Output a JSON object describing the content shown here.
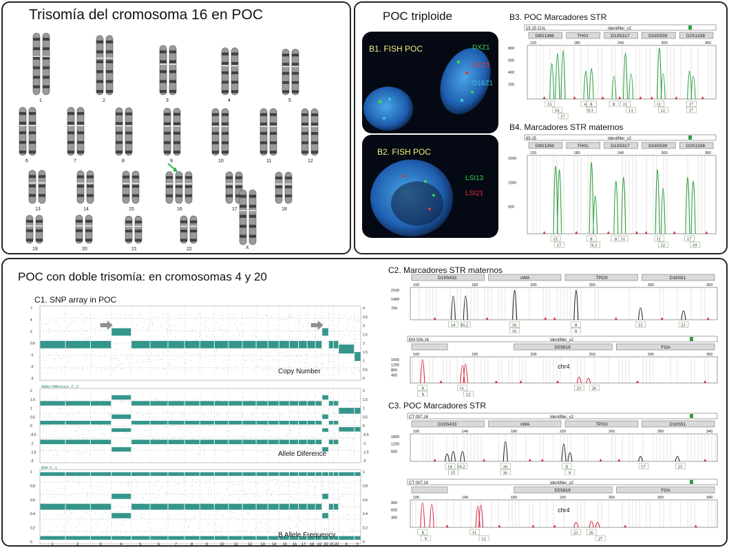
{
  "panel_a": {
    "title": "Trisomía del cromosoma 16 en POC",
    "chromosomes": [
      {
        "label": "1",
        "row": 0,
        "col": 0,
        "count": 2,
        "len": 1.0
      },
      {
        "label": "2",
        "row": 0,
        "col": 1,
        "count": 2,
        "len": 0.96
      },
      {
        "label": "3",
        "row": 0,
        "col": 2,
        "count": 2,
        "len": 0.8
      },
      {
        "label": "4",
        "row": 0,
        "col": 3,
        "count": 2,
        "len": 0.76
      },
      {
        "label": "5",
        "row": 0,
        "col": 4,
        "count": 2,
        "len": 0.74
      },
      {
        "label": "6",
        "row": 1,
        "col": 0,
        "count": 2,
        "len": 0.7
      },
      {
        "label": "7",
        "row": 1,
        "col": 1,
        "count": 2,
        "len": 0.66
      },
      {
        "label": "8",
        "row": 1,
        "col": 2,
        "count": 2,
        "len": 0.6
      },
      {
        "label": "9",
        "row": 1,
        "col": 3,
        "count": 2,
        "len": 0.58
      },
      {
        "label": "10",
        "row": 1,
        "col": 4,
        "count": 2,
        "len": 0.56
      },
      {
        "label": "11",
        "row": 1,
        "col": 5,
        "count": 2,
        "len": 0.56
      },
      {
        "label": "12",
        "row": 1,
        "col": 6,
        "count": 2,
        "len": 0.55
      },
      {
        "label": "13",
        "row": 2,
        "col": 0,
        "count": 2,
        "len": 0.45
      },
      {
        "label": "14",
        "row": 2,
        "col": 1,
        "count": 2,
        "len": 0.42
      },
      {
        "label": "15",
        "row": 2,
        "col": 2,
        "count": 2,
        "len": 0.4
      },
      {
        "label": "16",
        "row": 2,
        "col": 3,
        "count": 3,
        "len": 0.36
      },
      {
        "label": "17",
        "row": 2,
        "col": 4,
        "count": 2,
        "len": 0.34
      },
      {
        "label": "18",
        "row": 2,
        "col": 5,
        "count": 2,
        "len": 0.32
      },
      {
        "label": "19",
        "row": 3,
        "col": 0,
        "count": 2,
        "len": 0.26
      },
      {
        "label": "20",
        "row": 3,
        "col": 1,
        "count": 2,
        "len": 0.27
      },
      {
        "label": "21",
        "row": 3,
        "col": 2,
        "count": 2,
        "len": 0.2
      },
      {
        "label": "22",
        "row": 3,
        "col": 3,
        "count": 2,
        "len": 0.21
      },
      {
        "label": "X",
        "row": 3,
        "col": 4,
        "count": 2,
        "len": 0.62
      }
    ],
    "arrow_color": "#2db34a"
  },
  "panel_b": {
    "title": "POC triploide",
    "fish1": {
      "label": "B1. FISH POC",
      "probes": [
        {
          "name": "DXZ1",
          "color": "#39d353"
        },
        {
          "name": "DYZ3",
          "color": "#e0333a"
        },
        {
          "name": "D18Z1",
          "color": "#36c8d6"
        }
      ]
    },
    "fish2": {
      "label": "B2. FISH POC",
      "probes": [
        {
          "name": "LSI13",
          "color": "#39d353"
        },
        {
          "name": "LSI21",
          "color": "#e0333a"
        }
      ]
    },
    "str_b3": {
      "title": "B3. POC Marcadores STR",
      "header_left": "15.15 CUL",
      "header_center": "Identifiler_v2",
      "markers": [
        "D8S1368",
        "TH01",
        "D13S317",
        "D16S539",
        "D2S1338"
      ],
      "x_ticks": [
        "120",
        "180",
        "240",
        "300",
        "360"
      ],
      "y_ticks": [
        "800",
        "600",
        "400",
        "200"
      ],
      "allele_rows": [
        [
          "15",
          "6",
          "8",
          "8",
          "11",
          "11",
          "17"
        ],
        [
          "16",
          "9.3",
          "13",
          "12",
          "17"
        ],
        [
          "17"
        ]
      ]
    },
    "str_b4": {
      "title": "B4. Marcadores STR maternos",
      "header_left": "65.15",
      "header_center": "Identifiler_v2",
      "markers": [
        "D8S1358",
        "TH01",
        "D13S317",
        "D16S539",
        "D2S1338"
      ],
      "x_ticks": [
        "120",
        "180",
        "240",
        "300",
        "360"
      ],
      "y_ticks": [
        "1500",
        "1000",
        "500"
      ],
      "allele_rows": [
        [
          "15",
          "8",
          "8",
          "11",
          "11",
          "17"
        ],
        [
          "17",
          "9.3",
          "12",
          "19"
        ]
      ]
    }
  },
  "panel_c": {
    "title": "POC con doble trisomía: en cromosomas 4 y 20",
    "snp_title": "C1. SNP array in POC",
    "tracks": [
      {
        "name": "Copy Number",
        "header": "",
        "y_left": [
          "7",
          "4",
          "2",
          "0.5",
          "-1",
          "-2",
          "-3"
        ],
        "y_right": [
          "4",
          "3.5",
          "3",
          "2.5",
          "2",
          "1.5",
          "1",
          "0.5",
          "0"
        ]
      },
      {
        "name": "Allele Diference",
        "header": "Allele Difference -2...2",
        "y_left": [
          "2",
          "1.5",
          "1",
          "0.5",
          "0",
          "-0.5",
          "-1",
          "-1.5",
          "-2"
        ],
        "y_right": [
          "2",
          "1.5",
          "1",
          "0.5",
          "0",
          "-0.5",
          "-1",
          "-1.5",
          "-2"
        ]
      },
      {
        "name": "B Allele Frequency",
        "header": "BAF 0...1",
        "y_left": [
          "1",
          "0.8",
          "0.6",
          "0.4",
          "0.2",
          "0"
        ],
        "y_right": [
          "1",
          "0.8",
          "0.6",
          "0.4",
          "0.2",
          "0"
        ]
      }
    ],
    "x_labels": [
      "1",
      "2",
      "3",
      "4",
      "5",
      "6",
      "7",
      "8",
      "9",
      "10",
      "11",
      "12",
      "13",
      "14",
      "15",
      "16",
      "17",
      "18",
      "19",
      "20",
      "21",
      "22",
      "X",
      "Y"
    ],
    "c2_title": "C2. Marcadores STR maternos",
    "c2_top": {
      "header_left": "",
      "markers": [
        "D19S433",
        "vWA",
        "TPOX",
        "D18S51"
      ],
      "x_ticks": [
        "100",
        "150",
        "200",
        "250",
        "300",
        "350"
      ],
      "y_ticks": [
        "2100",
        "1400",
        "700"
      ],
      "allele_rows": [
        [
          "14",
          "16.2",
          "16",
          "8",
          "13",
          "23"
        ],
        [
          "16",
          "8"
        ]
      ]
    },
    "c2_bottom": {
      "header_left": "EM 026.16",
      "header_center": "Identifiler_v2",
      "markers": [
        "",
        "D5S818",
        "FGA"
      ],
      "x_ticks": [
        "100",
        "150",
        "200",
        "250",
        "300",
        "350"
      ],
      "y_ticks": [
        "1600",
        "1200",
        "800",
        "400"
      ],
      "annotation": "chr4",
      "allele_rows": [
        [
          "X",
          "11",
          "23",
          "26"
        ],
        [
          "X",
          "12"
        ]
      ]
    },
    "c3_title": "C3. POC Marcadores STR",
    "c3_top": {
      "header_left": "CT 007.16",
      "header_center": "Identifiler_v2",
      "markers": [
        "D19S433",
        "vWA",
        "TPOX",
        "D18S51"
      ],
      "x_ticks": [
        "100",
        "140",
        "180",
        "220",
        "260",
        "300",
        "340"
      ],
      "y_ticks": [
        "1800",
        "1200",
        "600"
      ],
      "allele_rows": [
        [
          "14",
          "16.2",
          "16",
          "8",
          "17",
          "23"
        ],
        [
          "15",
          "16",
          "9"
        ]
      ]
    },
    "c3_bottom": {
      "header_left": "CT 007.16",
      "header_center": "Identifiler_v2",
      "markers": [
        "",
        "D5S818",
        "FGA"
      ],
      "x_ticks": [
        "100",
        "140",
        "180",
        "220",
        "260",
        "300",
        "340"
      ],
      "y_ticks": [
        "900",
        "600",
        "300"
      ],
      "annotation": "chr4",
      "allele_rows": [
        [
          "X",
          "11",
          "23",
          "26"
        ],
        [
          "Y",
          "12",
          "27"
        ]
      ]
    },
    "colors": {
      "snp": "#1f8b7e",
      "str_green": "#2ea043",
      "str_red": "#d7263d",
      "str_black": "#222222",
      "arrow": "#909090"
    }
  }
}
